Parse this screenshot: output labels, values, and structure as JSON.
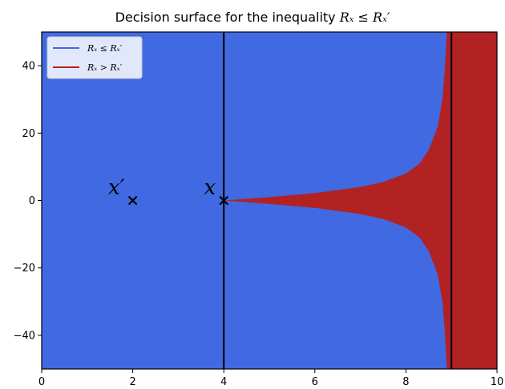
{
  "chart_data": {
    "type": "heatmap",
    "title": {
      "prefix": "Decision surface for the inequality ",
      "math": "Rₓ ≤ Rₓ′"
    },
    "xlim": [
      0,
      10
    ],
    "ylim": [
      -50,
      50
    ],
    "xticks": [
      0,
      2,
      4,
      6,
      8,
      10
    ],
    "yticks": [
      -40,
      -20,
      0,
      20,
      40
    ],
    "colors": {
      "le": "#4169e1",
      "gt": "#b22222",
      "line": "#000000"
    },
    "regions": [
      {
        "name": "Rₓ ≤ Rₓ′",
        "color": "#4169e1"
      },
      {
        "name": "Rₓ > Rₓ′",
        "color": "#b22222"
      }
    ],
    "boundary_curve": {
      "description_points_x": [
        4.0,
        5.0,
        6.0,
        7.0,
        7.5,
        8.0,
        8.3,
        8.5,
        8.7,
        8.8,
        8.85,
        8.9
      ],
      "description_points_y": [
        0.0,
        1.0,
        2.2,
        4.0,
        5.5,
        8.0,
        11.0,
        15.0,
        22.0,
        30.0,
        38.0,
        50.0
      ]
    },
    "right_band_x": 8.95,
    "vertical_lines_x": [
      4,
      9
    ],
    "points": [
      {
        "x": 2,
        "y": 0,
        "label": "x′"
      },
      {
        "x": 4,
        "y": 0,
        "label": "x"
      }
    ],
    "legend": {
      "placement": "top-left",
      "entries": [
        {
          "label": "Rₓ ≤ Rₓ′",
          "color": "#4169e1"
        },
        {
          "label": "Rₓ > Rₓ′",
          "color": "#b22222"
        }
      ]
    }
  }
}
